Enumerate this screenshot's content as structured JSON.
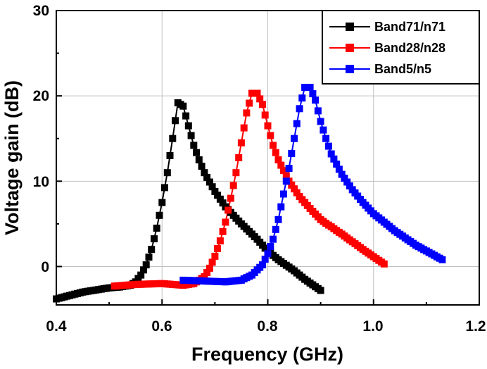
{
  "chart_data": {
    "type": "line",
    "title": "",
    "xlabel": "Frequency (GHz)",
    "ylabel": "Voltage gain (dB)",
    "xlim": [
      0.4,
      1.2
    ],
    "ylim": [
      -4.5,
      30
    ],
    "xticks": [
      "0.4",
      "0.6",
      "0.8",
      "1.0",
      "1.2"
    ],
    "yticks": [
      "0",
      "10",
      "20",
      "30"
    ],
    "grid": true,
    "legend_position": "top-right",
    "colors": {
      "Band71/n71": "#000000",
      "Band28/n28": "#ff0000",
      "Band5/n5": "#0000ff"
    },
    "series": [
      {
        "name": "Band71/n71",
        "x": [
          0.4,
          0.45,
          0.5,
          0.52,
          0.54,
          0.55,
          0.56,
          0.57,
          0.58,
          0.59,
          0.6,
          0.61,
          0.62,
          0.63,
          0.64,
          0.65,
          0.66,
          0.67,
          0.68,
          0.7,
          0.72,
          0.75,
          0.78,
          0.8,
          0.82,
          0.85,
          0.87,
          0.9
        ],
        "y": [
          -3.8,
          -3.0,
          -2.5,
          -2.4,
          -2.2,
          -1.8,
          -1.0,
          0.2,
          2.0,
          4.5,
          7.5,
          11.0,
          15.0,
          19.2,
          18.8,
          16.5,
          14.2,
          12.5,
          11.0,
          8.8,
          7.0,
          5.0,
          3.2,
          1.8,
          0.8,
          -0.5,
          -1.5,
          -2.8
        ]
      },
      {
        "name": "Band28/n28",
        "x": [
          0.51,
          0.55,
          0.6,
          0.64,
          0.66,
          0.68,
          0.69,
          0.7,
          0.71,
          0.72,
          0.73,
          0.74,
          0.75,
          0.76,
          0.77,
          0.78,
          0.79,
          0.8,
          0.81,
          0.82,
          0.84,
          0.86,
          0.88,
          0.9,
          0.94,
          0.98,
          1.02
        ],
        "y": [
          -2.3,
          -2.1,
          -2.0,
          -2.2,
          -2.0,
          -1.2,
          -0.2,
          1.2,
          3.0,
          5.2,
          8.0,
          11.0,
          14.5,
          18.0,
          20.3,
          20.3,
          19.0,
          16.5,
          14.2,
          12.5,
          10.0,
          8.2,
          6.8,
          5.5,
          3.8,
          2.0,
          0.3
        ]
      },
      {
        "name": "Band5/n5",
        "x": [
          0.64,
          0.68,
          0.72,
          0.75,
          0.77,
          0.79,
          0.8,
          0.81,
          0.82,
          0.83,
          0.84,
          0.85,
          0.86,
          0.87,
          0.88,
          0.89,
          0.9,
          0.91,
          0.92,
          0.94,
          0.96,
          0.98,
          1.0,
          1.04,
          1.08,
          1.13
        ],
        "y": [
          -1.6,
          -1.7,
          -1.8,
          -1.6,
          -1.0,
          0.2,
          1.5,
          3.2,
          5.5,
          8.5,
          11.5,
          15.0,
          18.5,
          21.0,
          21.0,
          19.5,
          17.0,
          15.0,
          13.2,
          10.8,
          9.0,
          7.5,
          6.2,
          4.2,
          2.5,
          0.8
        ]
      }
    ]
  }
}
